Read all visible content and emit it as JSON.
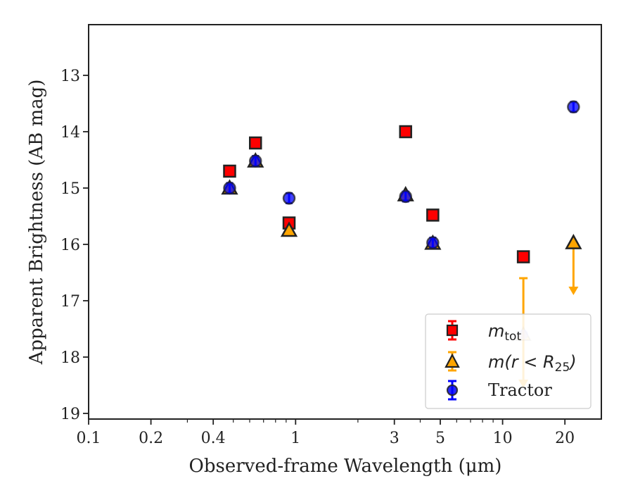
{
  "chart_data": {
    "type": "scatter",
    "title": "",
    "xlabel": "Observed-frame Wavelength (μm)",
    "ylabel": "Apparent Brightness (AB mag)",
    "xscale": "log",
    "xlim": [
      0.1,
      30
    ],
    "ylim": [
      19.1,
      12.1
    ],
    "y_inverted": true,
    "xticks": [
      0.1,
      0.2,
      0.4,
      1,
      3,
      5,
      10,
      20
    ],
    "xtick_labels": [
      "0.1",
      "0.2",
      "0.4",
      "1",
      "3",
      "5",
      "10",
      "20"
    ],
    "yticks": [
      13,
      14,
      15,
      16,
      17,
      18,
      19
    ],
    "ytick_labels": [
      "13",
      "14",
      "15",
      "16",
      "17",
      "18",
      "19"
    ],
    "legend_position": "lower-right",
    "series": [
      {
        "name": "m_tot",
        "marker": "square",
        "color": "#ff0000",
        "points": [
          {
            "x": 0.48,
            "y": 14.7
          },
          {
            "x": 0.64,
            "y": 14.2
          },
          {
            "x": 0.93,
            "y": 15.62
          },
          {
            "x": 3.4,
            "y": 14.0
          },
          {
            "x": 4.6,
            "y": 15.48
          },
          {
            "x": 12.6,
            "y": 16.22
          }
        ]
      },
      {
        "name": "m(r < R25)",
        "marker": "triangle",
        "color": "#ffa500",
        "points": [
          {
            "x": 0.48,
            "y": 15.0
          },
          {
            "x": 0.64,
            "y": 14.52
          },
          {
            "x": 0.93,
            "y": 15.75
          },
          {
            "x": 3.4,
            "y": 15.12
          },
          {
            "x": 4.6,
            "y": 15.98
          },
          {
            "x": 12.6,
            "y": 17.6,
            "upper_limit": true,
            "arrow_to": 18.5,
            "err_top": 16.6
          },
          {
            "x": 22.0,
            "y": 15.97,
            "upper_limit": true,
            "arrow_to": 16.85
          }
        ]
      },
      {
        "name": "Tractor",
        "marker": "circle",
        "color": "#0000ff",
        "points": [
          {
            "x": 0.48,
            "y": 15.0
          },
          {
            "x": 0.64,
            "y": 14.52
          },
          {
            "x": 0.93,
            "y": 15.18
          },
          {
            "x": 3.4,
            "y": 15.15
          },
          {
            "x": 4.6,
            "y": 15.97
          },
          {
            "x": 22.0,
            "y": 13.56
          }
        ]
      }
    ]
  },
  "legend": {
    "mtot_base": "m",
    "mtot_sub": "tot",
    "mr_prefix": "m(r < R",
    "mr_sub": "25",
    "mr_suffix": ")",
    "tractor": "Tractor"
  }
}
